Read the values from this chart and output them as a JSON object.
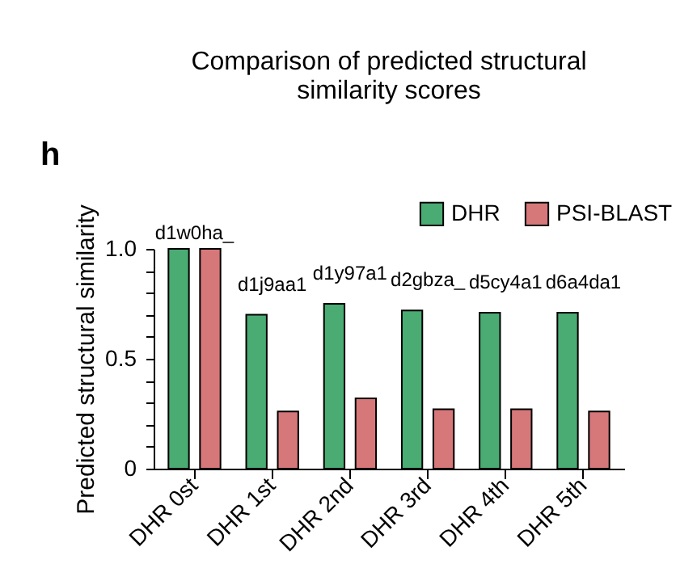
{
  "chart_data": {
    "type": "bar",
    "title": "Comparison of predicted structural similarity scores",
    "ylabel": "Predicted structural similarity",
    "categories": [
      "DHR 0st",
      "DHR 1st",
      "DHR 2nd",
      "DHR 3rd",
      "DHR 4th",
      "DHR 5th"
    ],
    "series": [
      {
        "name": "DHR",
        "color": "#4aab73",
        "values": [
          1.0,
          0.7,
          0.75,
          0.72,
          0.71,
          0.71
        ]
      },
      {
        "name": "PSI-BLAST",
        "color": "#d6777a",
        "values": [
          1.0,
          0.26,
          0.32,
          0.27,
          0.27,
          0.26
        ]
      }
    ],
    "ylim": [
      0,
      1.0
    ],
    "yticks": [
      0,
      {
        "value": 0.1,
        "label": null
      },
      {
        "value": 0.2,
        "label": null
      },
      {
        "value": 0.3,
        "label": null
      },
      {
        "value": 0.4,
        "label": null
      },
      0.5,
      {
        "value": 0.6,
        "label": null
      },
      {
        "value": 0.7,
        "label": null
      },
      {
        "value": 0.8,
        "label": null
      },
      {
        "value": 0.9,
        "label": null
      },
      {
        "value": 1.0,
        "label": "1.0"
      }
    ],
    "annotations": [
      "h",
      {
        "text": "d1w0ha_",
        "x": "DHR 0st",
        "y": 1.0
      },
      {
        "text": "d1j9aa1",
        "x": "DHR 1st",
        "y": 0.7
      },
      {
        "text": "d1y97a1",
        "x": "DHR 2nd",
        "y": 0.75
      },
      {
        "text": "d2gbza_",
        "x": "DHR 3rd",
        "y": 0.72
      },
      {
        "text": "d5cy4a1",
        "x": "DHR 4th",
        "y": 0.71
      },
      {
        "text": "d6a4da1",
        "x": "DHR 5th",
        "y": 0.71
      }
    ],
    "legend": "top right",
    "grid": false
  }
}
